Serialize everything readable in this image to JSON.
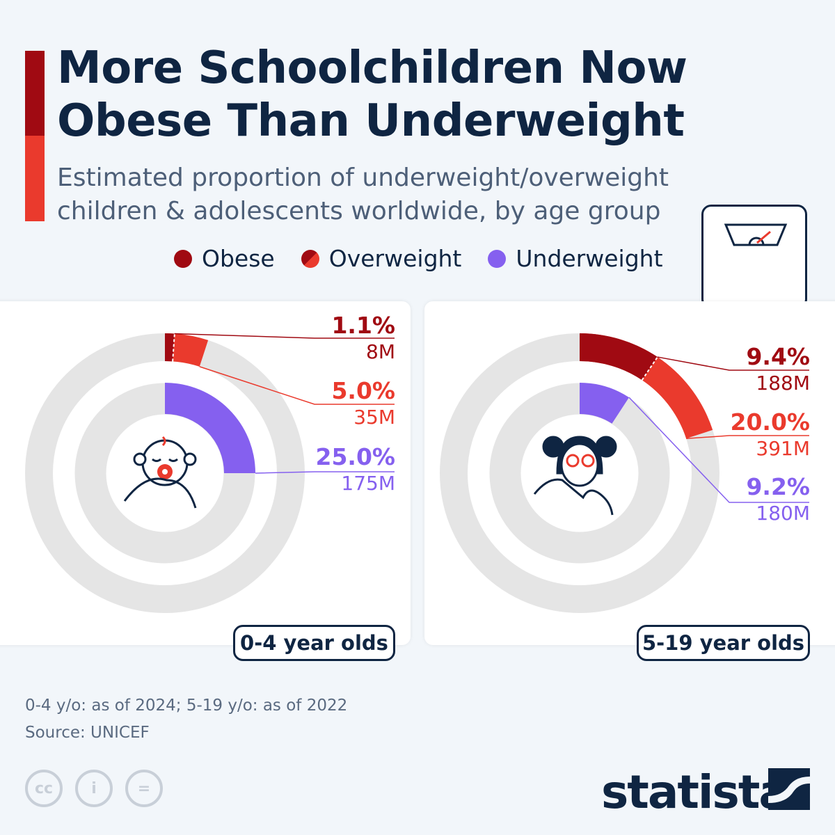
{
  "title": "More Schoolchildren Now Obese Than Underweight",
  "title_lines": [
    "More Schoolchildren Now",
    "Obese Than Underweight"
  ],
  "subtitle_lines": [
    "Estimated proportion of underweight/overweight",
    "children & adolescents worldwide, by age group"
  ],
  "legend": [
    {
      "label": "Obese",
      "color": "#a00a12"
    },
    {
      "label": "Overweight",
      "color": "#ea3a2d"
    },
    {
      "label": "Underweight",
      "color": "#8560ef"
    }
  ],
  "footnote": "0-4 y/o: as of 2024; 5-19 y/o: as of 2022",
  "source": "Source: UNICEF",
  "brand": "statista",
  "license_icons": [
    "cc-icon",
    "attribution-icon",
    "no-derivatives-icon"
  ],
  "chart_data": [
    {
      "type": "pie",
      "variant": "radial-donut",
      "group": "0-4 year olds",
      "icon": "baby-icon",
      "series": [
        {
          "name": "Obese",
          "percent": 1.1,
          "count": "8M",
          "color": "#a00a12"
        },
        {
          "name": "Overweight",
          "percent": 5.0,
          "count": "35M",
          "color": "#ea3a2d"
        },
        {
          "name": "Underweight",
          "percent": 25.0,
          "count": "175M",
          "color": "#8560ef"
        }
      ]
    },
    {
      "type": "pie",
      "variant": "radial-donut",
      "group": "5-19 year olds",
      "icon": "girl-icon",
      "series": [
        {
          "name": "Obese",
          "percent": 9.4,
          "count": "188M",
          "color": "#a00a12"
        },
        {
          "name": "Overweight",
          "percent": 20.0,
          "count": "391M",
          "color": "#ea3a2d"
        },
        {
          "name": "Underweight",
          "percent": 9.2,
          "count": "180M",
          "color": "#8560ef"
        }
      ]
    }
  ]
}
